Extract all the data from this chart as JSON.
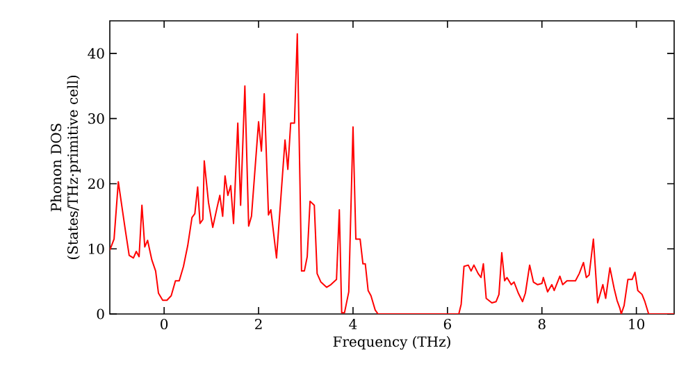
{
  "chart_data": {
    "type": "line",
    "xlabel": "Frequency (THz)",
    "ylabel": "Phonon DOS (States/THz·primitive cell)",
    "xlim": [
      -1.15,
      10.8
    ],
    "ylim": [
      0,
      45
    ],
    "xticks": [
      0,
      2,
      4,
      6,
      8,
      10
    ],
    "yticks": [
      0,
      10,
      20,
      30,
      40
    ],
    "grid": false,
    "series": [
      {
        "color": "#ff0000",
        "x": [
          -1.15,
          -1.06,
          -0.97,
          -0.88,
          -0.82,
          -0.74,
          -0.65,
          -0.59,
          -0.53,
          -0.47,
          -0.41,
          -0.35,
          -0.26,
          -0.18,
          -0.12,
          -0.03,
          0.06,
          0.15,
          0.24,
          0.32,
          0.41,
          0.5,
          0.59,
          0.65,
          0.71,
          0.76,
          0.82,
          0.85,
          0.94,
          1.03,
          1.12,
          1.18,
          1.24,
          1.29,
          1.35,
          1.41,
          1.47,
          1.56,
          1.62,
          1.71,
          1.79,
          1.85,
          2.0,
          2.06,
          2.12,
          2.21,
          2.26,
          2.38,
          2.56,
          2.62,
          2.68,
          2.76,
          2.82,
          2.91,
          2.97,
          3.03,
          3.09,
          3.18,
          3.24,
          3.32,
          3.44,
          3.53,
          3.65,
          3.71,
          3.76,
          3.82,
          3.91,
          4.0,
          4.06,
          4.15,
          4.21,
          4.26,
          4.32,
          4.38,
          4.47,
          4.53,
          6.24,
          6.29,
          6.35,
          6.44,
          6.5,
          6.56,
          6.65,
          6.71,
          6.76,
          6.82,
          6.94,
          7.03,
          7.09,
          7.15,
          7.21,
          7.26,
          7.35,
          7.41,
          7.5,
          7.59,
          7.65,
          7.74,
          7.82,
          7.91,
          8.0,
          8.03,
          8.12,
          8.21,
          8.26,
          8.38,
          8.44,
          8.53,
          8.71,
          8.79,
          8.88,
          8.94,
          9.0,
          9.09,
          9.18,
          9.29,
          9.35,
          9.44,
          9.53,
          9.59,
          9.65,
          9.68,
          9.74,
          9.82,
          9.91,
          9.97,
          10.03,
          10.12,
          10.18,
          10.26,
          10.8
        ],
        "values": [
          9.8,
          11.5,
          20.3,
          15.8,
          12.8,
          9,
          8.6,
          9.6,
          8.8,
          16.7,
          10.3,
          11.3,
          8.3,
          6.6,
          3.2,
          2.1,
          2.1,
          2.8,
          5.1,
          5.1,
          7.3,
          10.5,
          14.8,
          15.4,
          19.5,
          13.9,
          14.5,
          23.5,
          17.1,
          13.3,
          16.3,
          18.2,
          15,
          21.2,
          18.2,
          19.7,
          13.9,
          29.3,
          16.7,
          35,
          13.5,
          15,
          29.5,
          25,
          33.8,
          15.2,
          16,
          8.6,
          26.7,
          22.2,
          29.3,
          29.3,
          43,
          6.6,
          6.6,
          8.8,
          17.3,
          16.7,
          6.2,
          4.9,
          4.1,
          4.5,
          5.3,
          16,
          0.2,
          0.2,
          3.4,
          28.7,
          11.5,
          11.5,
          7.7,
          7.7,
          3.6,
          2.8,
          0.6,
          0,
          0,
          1.5,
          7.3,
          7.5,
          6.6,
          7.5,
          6.2,
          5.6,
          7.7,
          2.4,
          1.7,
          1.9,
          3,
          9.4,
          5.1,
          5.6,
          4.5,
          4.9,
          3.2,
          1.9,
          3.2,
          7.5,
          4.9,
          4.5,
          4.7,
          5.6,
          3.4,
          4.5,
          3.6,
          5.8,
          4.5,
          5.1,
          5.1,
          6.2,
          7.9,
          5.6,
          6.0,
          11.5,
          1.7,
          4.5,
          2.4,
          7.1,
          3.9,
          2.1,
          0.9,
          0,
          1.3,
          5.3,
          5.3,
          6.4,
          3.6,
          3,
          1.9,
          0,
          0
        ]
      }
    ]
  }
}
